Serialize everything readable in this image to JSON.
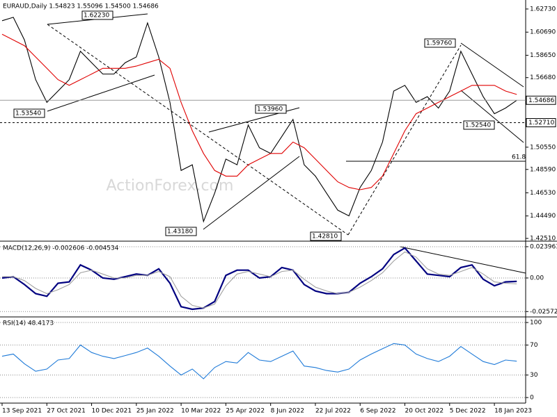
{
  "chart_data": [
    {
      "type": "line",
      "title": "EURAUD,Daily  1.54823 1.55096 1.54500 1.54686",
      "watermark": "ActionForex.com",
      "categories": [
        "13 Sep 2021",
        null,
        null,
        null,
        "27 Oct 2021",
        null,
        null,
        null,
        "10 Dec 2021",
        null,
        null,
        null,
        "25 Jan 2022",
        null,
        null,
        null,
        "10 Mar 2022",
        null,
        null,
        null,
        "25 Apr 2022",
        null,
        null,
        null,
        "8 Jun 2022",
        null,
        null,
        null,
        "22 Jul 2022",
        null,
        null,
        null,
        "6 Sep 2022",
        null,
        null,
        null,
        "20 Oct 2022",
        null,
        null,
        null,
        "5 Dec 2022",
        null,
        null,
        null,
        "18 Jan 2023",
        null,
        null
      ],
      "series": [
        {
          "color": "#000000",
          "values": [
            1.617,
            1.62,
            1.6,
            1.565,
            1.545,
            1.555,
            1.565,
            1.59,
            1.58,
            1.57,
            1.57,
            1.58,
            1.585,
            1.615,
            1.585,
            1.545,
            1.485,
            1.49,
            1.44,
            1.465,
            1.495,
            1.49,
            1.525,
            1.505,
            1.5,
            1.515,
            1.53,
            1.49,
            1.48,
            1.465,
            1.45,
            1.445,
            1.47,
            1.485,
            1.51,
            1.555,
            1.56,
            1.545,
            1.55,
            1.54,
            1.555,
            1.59,
            1.57,
            1.55,
            1.535,
            1.54,
            1.54686
          ]
        },
        {
          "color": "#e00000",
          "values": [
            1.605,
            1.6,
            1.595,
            1.585,
            1.575,
            1.565,
            1.56,
            1.565,
            1.57,
            1.575,
            1.575,
            1.575,
            1.577,
            1.58,
            1.583,
            1.575,
            1.545,
            1.52,
            1.5,
            1.485,
            1.48,
            1.48,
            1.49,
            1.495,
            1.5,
            1.5,
            1.51,
            1.505,
            1.495,
            1.485,
            1.475,
            1.47,
            1.468,
            1.47,
            1.48,
            1.5,
            1.52,
            1.535,
            1.54,
            1.545,
            1.55,
            1.555,
            1.56,
            1.56,
            1.56,
            1.555,
            1.552
          ]
        }
      ],
      "ylim": [
        1.4239,
        1.634
      ],
      "yticks": [
        {
          "value": 1.6273,
          "label": "1.62730"
        },
        {
          "value": 1.6069,
          "label": "1.60690"
        },
        {
          "value": 1.5865,
          "label": "1.58650"
        },
        {
          "value": 1.5668,
          "label": "1.56680"
        },
        {
          "value": 1.5055,
          "label": "1.50550"
        },
        {
          "value": 1.4859,
          "label": "1.48590"
        },
        {
          "value": 1.4653,
          "label": "1.46530"
        },
        {
          "value": 1.4449,
          "label": "1.44490"
        },
        {
          "value": 1.4251,
          "label": "1.42510"
        }
      ],
      "markers": [
        {
          "value": 1.54686,
          "label": "1.54686"
        },
        {
          "value": 1.5271,
          "label": "1.52710"
        }
      ],
      "annotations": [
        "1.62230",
        "1.53540",
        "1.53960",
        "1.43180",
        "1.42810",
        "1.59760",
        "1.52540",
        "61.8"
      ]
    },
    {
      "type": "line",
      "title": "MACD(12,26,9) -0.002606 -0.004534",
      "series": [
        {
          "color": "#000080",
          "values": [
            0.0,
            0.001,
            -0.005,
            -0.012,
            -0.014,
            -0.004,
            -0.003,
            0.01,
            0.006,
            0.0,
            -0.001,
            0.001,
            0.003,
            0.002,
            0.007,
            -0.004,
            -0.022,
            -0.024,
            -0.023,
            -0.018,
            0.002,
            0.006,
            0.006,
            0.0,
            0.001,
            0.008,
            0.006,
            -0.005,
            -0.01,
            -0.012,
            -0.012,
            -0.011,
            -0.004,
            0.001,
            0.007,
            0.018,
            0.023,
            0.013,
            0.003,
            0.002,
            0.001,
            0.008,
            0.01,
            -0.001,
            -0.006,
            -0.003,
            -0.002606
          ]
        },
        {
          "color": "#a0a0a0",
          "values": [
            0.001,
            0.001,
            -0.002,
            -0.008,
            -0.012,
            -0.009,
            -0.005,
            0.004,
            0.006,
            0.003,
            0.0,
            0.0,
            0.002,
            0.002,
            0.005,
            0.001,
            -0.014,
            -0.021,
            -0.023,
            -0.02,
            -0.006,
            0.003,
            0.005,
            0.003,
            0.001,
            0.005,
            0.006,
            -0.001,
            -0.007,
            -0.01,
            -0.012,
            -0.011,
            -0.007,
            -0.002,
            0.004,
            0.013,
            0.02,
            0.016,
            0.007,
            0.003,
            0.002,
            0.005,
            0.008,
            0.003,
            -0.003,
            -0.004,
            -0.004534
          ]
        }
      ],
      "ylim": [
        -0.0293,
        0.0266
      ],
      "yticks": [
        0.023963,
        {
          "value": 0,
          "label": "0.00"
        },
        -0.025726
      ]
    },
    {
      "type": "line",
      "title": "RSI(14) 48.4173",
      "series": [
        {
          "color": "#1e7ad8",
          "values": [
            55,
            58,
            45,
            35,
            38,
            50,
            52,
            70,
            60,
            55,
            52,
            56,
            60,
            66,
            55,
            42,
            30,
            38,
            25,
            40,
            48,
            46,
            60,
            50,
            48,
            55,
            62,
            42,
            40,
            36,
            34,
            38,
            50,
            58,
            65,
            72,
            70,
            58,
            52,
            48,
            55,
            68,
            58,
            48,
            44,
            50,
            48.4173
          ]
        }
      ],
      "ylim": [
        -7.4,
        105.6
      ],
      "yticks": [
        100,
        70,
        30,
        0
      ]
    }
  ]
}
